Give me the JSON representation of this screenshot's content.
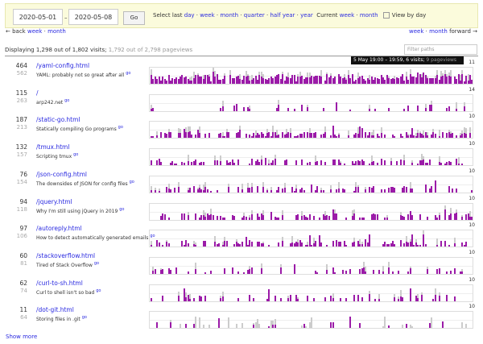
{
  "header": {
    "date_from": "2020-05-01",
    "sep": "–",
    "date_to": "2020-05-08",
    "go_label": "Go",
    "select_last_label": "Select last",
    "ranges": [
      "day",
      "week",
      "month",
      "quarter",
      "half year",
      "year"
    ],
    "current_label": "Current",
    "current": [
      "week",
      "month"
    ],
    "view_by_day_label": "View by day"
  },
  "nav": {
    "back_label": "← back",
    "back": [
      "week",
      "month"
    ],
    "forward": [
      "week",
      "month"
    ],
    "forward_label": "forward →"
  },
  "summary": {
    "visits": "Displaying 1,298 out of 1,802 visits;",
    "pageviews": "1,792 out of 2,798 pageviews"
  },
  "filter": {
    "placeholder": "Filter paths"
  },
  "tooltip": {
    "text": "5 May 19:00 – 19:59, 6 visits;",
    "muted": "9 pageviews"
  },
  "colors": {
    "bar": "#9b1ba8",
    "bar_pageviews": "#cccccc",
    "link": "#2a2ae0"
  },
  "rows": [
    {
      "visits": "464",
      "pageviews": "562",
      "path": "/yaml-config.html",
      "title": "YAML: probably not so great after all",
      "go": "go",
      "max": "11"
    },
    {
      "visits": "115",
      "pageviews": "263",
      "path": "/",
      "title": "arp242.net",
      "go": "go",
      "max": "14"
    },
    {
      "visits": "187",
      "pageviews": "213",
      "path": "/static-go.html",
      "title": "Statically compiling Go programs",
      "go": "go",
      "max": "10"
    },
    {
      "visits": "132",
      "pageviews": "157",
      "path": "/tmux.html",
      "title": "Scripting tmux",
      "go": "go",
      "max": "10"
    },
    {
      "visits": "76",
      "pageviews": "154",
      "path": "/json-config.html",
      "title": "The downsides of JSON for config files",
      "go": "go",
      "max": "10"
    },
    {
      "visits": "94",
      "pageviews": "118",
      "path": "/jquery.html",
      "title": "Why I'm still using jQuery in 2019",
      "go": "go",
      "max": "10"
    },
    {
      "visits": "97",
      "pageviews": "106",
      "path": "/autoreply.html",
      "title": "How to detect automatically generated emails",
      "go": "go",
      "max": "10"
    },
    {
      "visits": "60",
      "pageviews": "81",
      "path": "/stackoverflow.html",
      "title": "Tired of Stack Overflow",
      "go": "go",
      "max": "10"
    },
    {
      "visits": "62",
      "pageviews": "74",
      "path": "/curl-to-sh.html",
      "title": "Curl to shell isn't so bad",
      "go": "go",
      "max": "10"
    },
    {
      "visits": "11",
      "pageviews": "64",
      "path": "/dot-git.html",
      "title": "Storing files in .git",
      "go": "go",
      "max": "10"
    }
  ],
  "show_more": "Show more"
}
